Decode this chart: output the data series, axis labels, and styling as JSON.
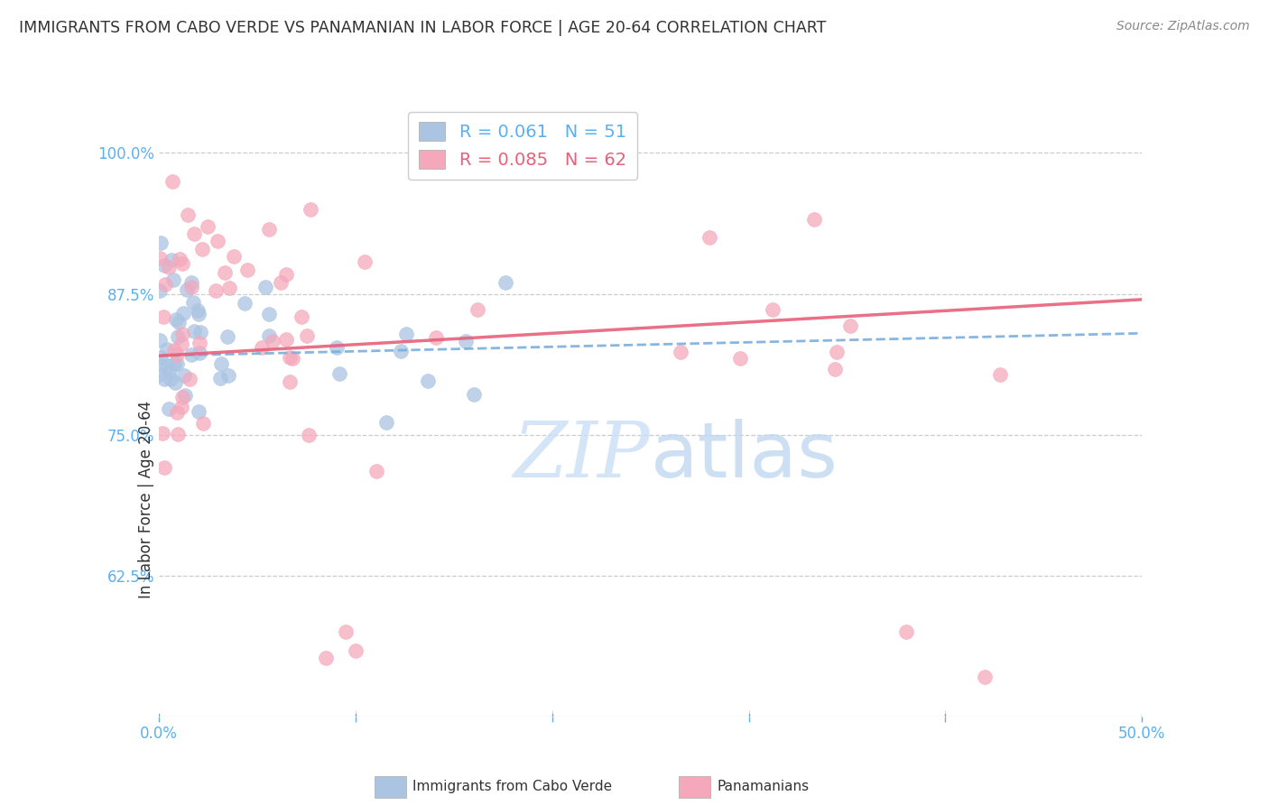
{
  "title": "IMMIGRANTS FROM CABO VERDE VS PANAMANIAN IN LABOR FORCE | AGE 20-64 CORRELATION CHART",
  "source": "Source: ZipAtlas.com",
  "ylabel": "In Labor Force | Age 20-64",
  "ytick_values": [
    1.0,
    0.875,
    0.75,
    0.625
  ],
  "xlim": [
    0.0,
    0.5
  ],
  "ylim": [
    0.5,
    1.05
  ],
  "cabo_verde_R": 0.061,
  "cabo_verde_N": 51,
  "panamanian_R": 0.085,
  "panamanian_N": 62,
  "cabo_verde_color": "#aac4e2",
  "panamanian_color": "#f5a8bc",
  "cabo_verde_line_color": "#7aaedd",
  "panamanian_line_color": "#e8607a",
  "background_color": "#ffffff",
  "grid_color": "#cccccc",
  "axis_label_color": "#5bb0f0",
  "title_color": "#333333",
  "watermark_color": "#c8dff5",
  "seed": 99
}
